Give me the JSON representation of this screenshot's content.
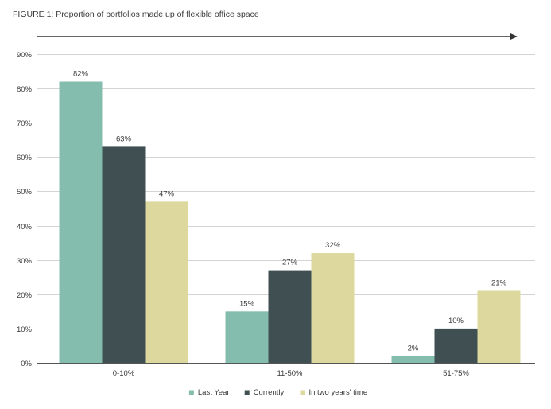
{
  "chart_data": {
    "type": "bar",
    "title": "FIGURE 1: Proportion of portfolios made up of flexible office space",
    "categories": [
      "0-10%",
      "11-50%",
      "51-75%"
    ],
    "series": [
      {
        "name": "Last Year",
        "values": [
          82,
          15,
          2
        ],
        "labels": [
          "82%",
          "15%",
          "2%"
        ],
        "color": "#84bcae"
      },
      {
        "name": "Currently",
        "values": [
          63,
          27,
          10
        ],
        "labels": [
          "63%",
          "27%",
          "10%"
        ],
        "color": "#404f52"
      },
      {
        "name": "In two years' time",
        "values": [
          47,
          32,
          21
        ],
        "labels": [
          "47%",
          "32%",
          "21%"
        ],
        "color": "#dcd89e"
      }
    ],
    "ylim": [
      0,
      90
    ],
    "yticks": [
      0,
      10,
      20,
      30,
      40,
      50,
      60,
      70,
      80,
      90
    ],
    "ytick_labels": [
      "0%",
      "10%",
      "20%",
      "30%",
      "40%",
      "50%",
      "60%",
      "70%",
      "80%",
      "90%"
    ],
    "grid": true,
    "legend_position": "bottom-center",
    "arrow": true
  }
}
